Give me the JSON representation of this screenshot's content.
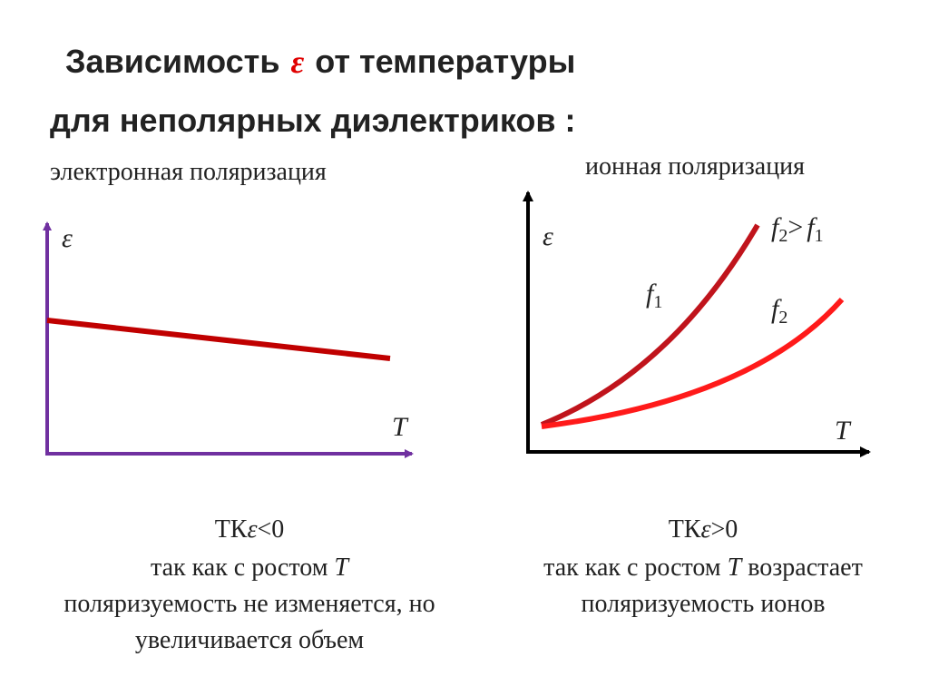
{
  "header": {
    "title_parts": [
      "Зависимость",
      "ε",
      "от температуры"
    ],
    "subtitle": "для неполярных диэлектриков :"
  },
  "left": {
    "heading": "электронная поляризация",
    "y_axis": "ε",
    "x_axis": "T",
    "caption": {
      "tk": [
        "ТК",
        "ε",
        "<0"
      ],
      "line1": [
        "так как с ростом",
        "T"
      ],
      "line2": "поляризуемость не изменяется, но",
      "line3": "увеличивается объем"
    }
  },
  "right": {
    "heading": "ионная поляризация",
    "y_axis": "ε",
    "x_axis": "T",
    "relation": {
      "a": "f",
      "a_sub": "2",
      "op": ">",
      "b": "f",
      "b_sub": "1"
    },
    "curve1": {
      "base": "f",
      "sub": "1"
    },
    "curve2": {
      "base": "f",
      "sub": "2"
    },
    "caption": {
      "tk": [
        "ТК",
        "ε",
        ">0"
      ],
      "line1": [
        "так как с ростом",
        "T",
        "возрастает"
      ],
      "line2": "поляризуемость ионов"
    }
  }
}
